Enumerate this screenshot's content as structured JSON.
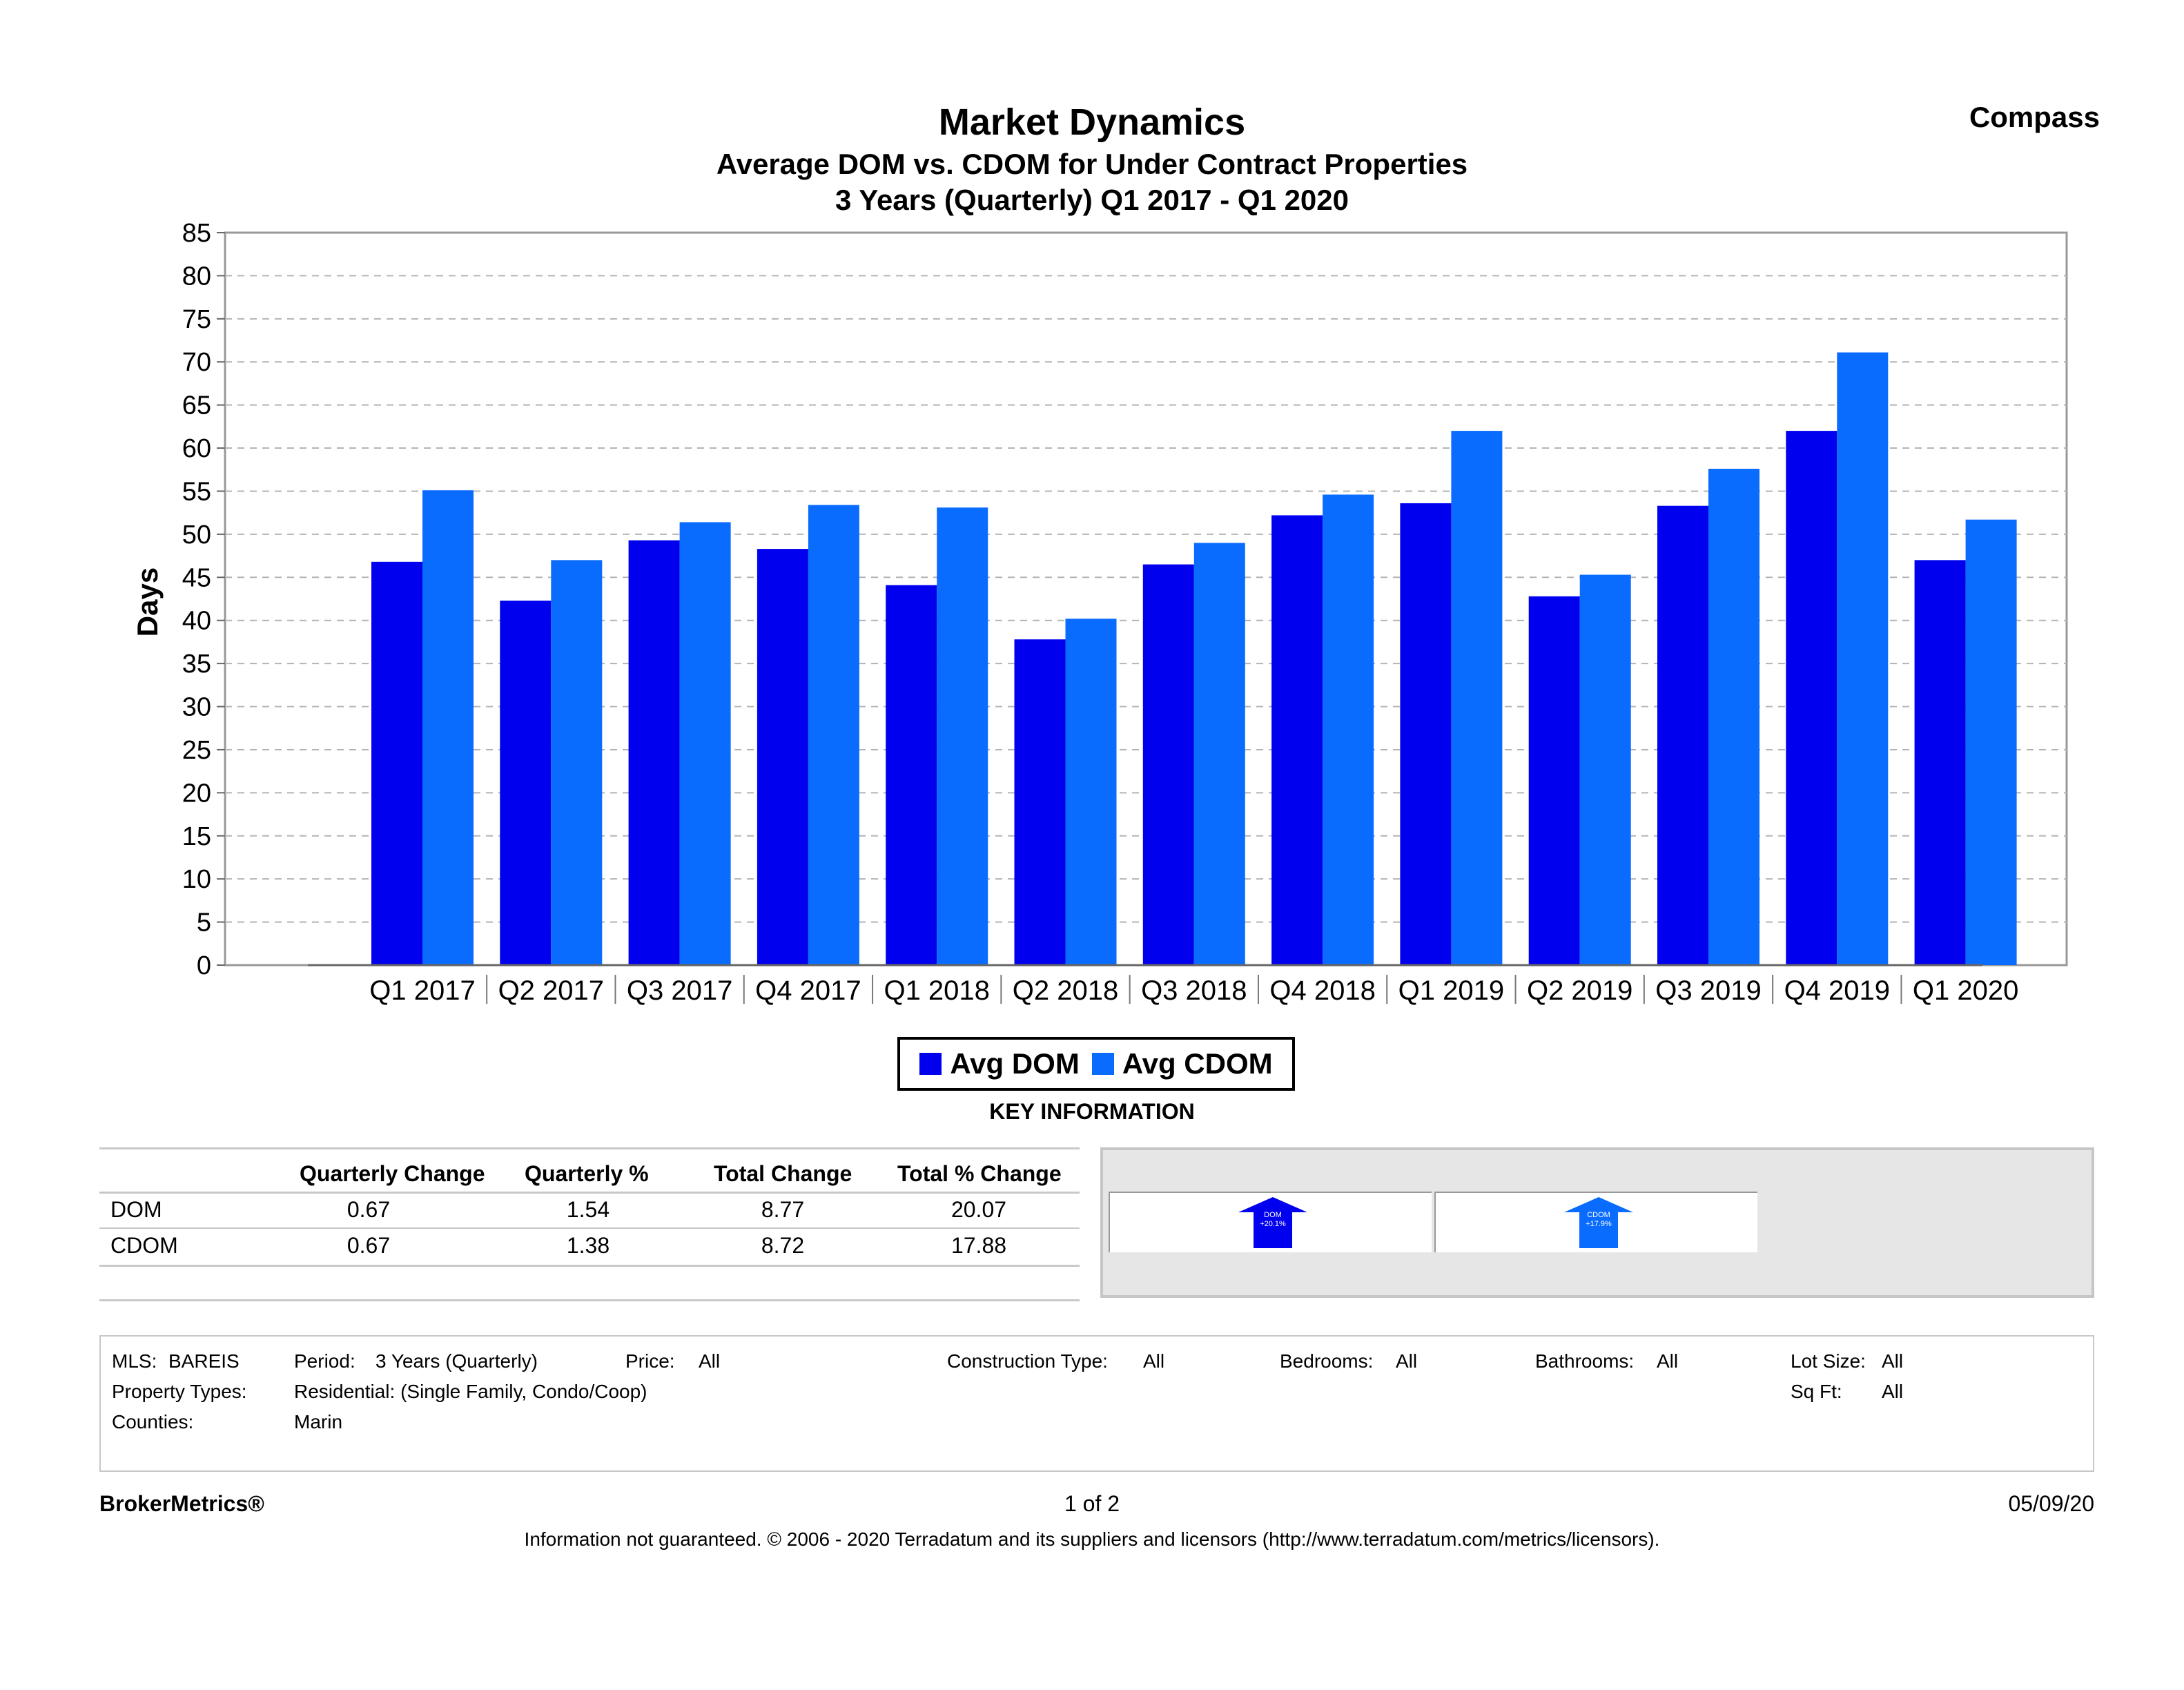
{
  "header": {
    "title": "Market Dynamics",
    "subtitle": "Average DOM vs. CDOM for Under Contract Properties",
    "period": "3 Years (Quarterly) Q1 2017 - Q1 2020",
    "brand": "Compass"
  },
  "chart_data": {
    "type": "bar",
    "title": "Market Dynamics",
    "ylabel": "Days",
    "xlabel": "",
    "ylim": [
      0,
      85
    ],
    "yticks": [
      "0",
      "5",
      "10",
      "15",
      "20",
      "25",
      "30",
      "35",
      "40",
      "45",
      "50",
      "55",
      "60",
      "65",
      "70",
      "75",
      "80",
      "85"
    ],
    "grid": true,
    "legend_position": "bottom",
    "categories": [
      "Q1 2017",
      "Q2 2017",
      "Q3 2017",
      "Q4 2017",
      "Q1 2018",
      "Q2 2018",
      "Q3 2018",
      "Q4 2018",
      "Q1 2019",
      "Q2 2019",
      "Q3 2019",
      "Q4 2019",
      "Q1 2020"
    ],
    "series": [
      {
        "name": "Avg DOM",
        "color": "#0000ee",
        "values": [
          46.8,
          42.3,
          49.3,
          48.3,
          44.1,
          37.8,
          46.5,
          52.2,
          53.6,
          42.8,
          53.3,
          62.0,
          47.0
        ]
      },
      {
        "name": "Avg CDOM",
        "color": "#0a6cff",
        "values": [
          55.1,
          47.0,
          51.4,
          53.4,
          53.1,
          40.2,
          49.0,
          54.6,
          62.0,
          45.3,
          57.6,
          71.1,
          51.7
        ]
      }
    ]
  },
  "key_information": {
    "title": "KEY INFORMATION",
    "columns": [
      "Quarterly Change",
      "Quarterly %",
      "Total Change",
      "Total % Change"
    ],
    "rows": [
      {
        "label": "DOM",
        "values": [
          "0.67",
          "1.54",
          "8.77",
          "20.07"
        ]
      },
      {
        "label": "CDOM",
        "values": [
          "0.67",
          "1.38",
          "8.72",
          "17.88"
        ]
      }
    ],
    "indicators": [
      {
        "label": "DOM",
        "change": "+20.1%",
        "color": "#0000ee"
      },
      {
        "label": "CDOM",
        "change": "+17.9%",
        "color": "#0a6cff"
      }
    ]
  },
  "criteria": {
    "mls_label": "MLS:",
    "mls_value": "BAREIS",
    "period_label": "Period:",
    "period_value": "3 Years (Quarterly)",
    "price_label": "Price:",
    "price_value": "All",
    "construction_label": "Construction Type:",
    "construction_value": "All",
    "bedrooms_label": "Bedrooms:",
    "bedrooms_value": "All",
    "bathrooms_label": "Bathrooms:",
    "bathrooms_value": "All",
    "lotsize_label": "Lot Size:",
    "lotsize_value": "All",
    "property_types_label": "Property Types:",
    "property_types_value": "Residential: (Single Family, Condo/Coop)",
    "sqft_label": "Sq Ft:",
    "sqft_value": "All",
    "counties_label": "Counties:",
    "counties_value": "Marin"
  },
  "footer": {
    "left": "BrokerMetrics®",
    "page": "1 of 2",
    "date": "05/09/20",
    "disclaimer": "Information not guaranteed.  © 2006 - 2020 Terradatum and its suppliers and licensors (http://www.terradatum.com/metrics/licensors)."
  }
}
